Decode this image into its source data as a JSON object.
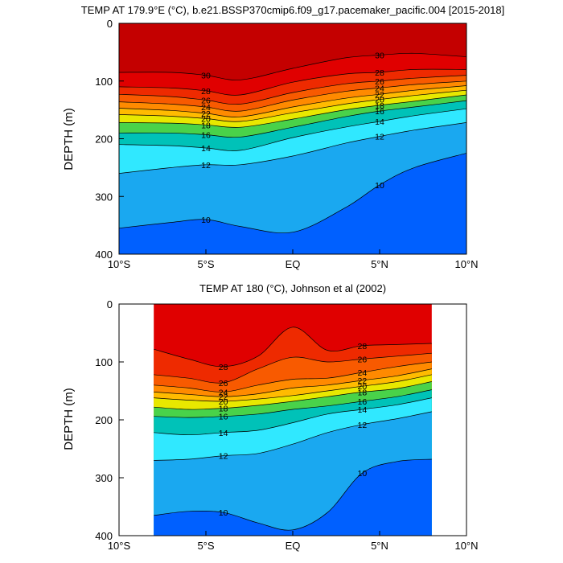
{
  "chart_data": [
    {
      "type": "contour",
      "title": "TEMP AT 179.9°E (°C), b.e21.BSSP370cmip6.f09_g17.pacemaker_pacific.004 [2015-2018]",
      "ylabel": "DEPTH (m)",
      "xlabel": "",
      "xlim": [
        -10,
        10
      ],
      "ylim": [
        400,
        0
      ],
      "x_ticks": [
        "10°S",
        "5°S",
        "EQ",
        "5°N",
        "10°N"
      ],
      "y_ticks": [
        "0",
        "100",
        "200",
        "300",
        "400"
      ],
      "data_extent_x": [
        -10,
        10
      ],
      "contour_levels": [
        10,
        12,
        14,
        16,
        18,
        20,
        22,
        24,
        26,
        28,
        30
      ],
      "labeled_isotherms": [
        30,
        28,
        26,
        24,
        22,
        20,
        18,
        16,
        14,
        12,
        10
      ],
      "approx_isotherm_depths_m": {
        "x": [
          -10,
          -7,
          -5,
          -3,
          0,
          3,
          5,
          7,
          10
        ],
        "30": [
          85,
          85,
          90,
          98,
          78,
          60,
          55,
          52,
          58
        ],
        "28": [
          110,
          112,
          117,
          124,
          102,
          88,
          85,
          80,
          80
        ],
        "26": [
          123,
          127,
          133,
          140,
          120,
          105,
          100,
          95,
          90
        ],
        "24": [
          136,
          140,
          145,
          152,
          133,
          118,
          112,
          106,
          100
        ],
        "22": [
          147,
          151,
          156,
          162,
          145,
          130,
          123,
          116,
          108
        ],
        "20": [
          158,
          161,
          165,
          170,
          155,
          140,
          132,
          125,
          116
        ],
        "18": [
          172,
          173,
          176,
          180,
          166,
          150,
          142,
          135,
          124
        ],
        "16": [
          190,
          190,
          193,
          197,
          180,
          162,
          152,
          145,
          134
        ],
        "14": [
          210,
          212,
          216,
          220,
          198,
          180,
          170,
          160,
          148
        ],
        "12": [
          260,
          250,
          245,
          245,
          230,
          208,
          196,
          185,
          172
        ],
        "10": [
          355,
          345,
          340,
          352,
          362,
          320,
          280,
          250,
          225
        ]
      },
      "warm_pool_above_30C": "surface to ~60 m near 7-5°S and 4-8°N"
    },
    {
      "type": "contour",
      "title": "TEMP AT 180 (°C), Johnson et al (2002)",
      "ylabel": "DEPTH (m)",
      "xlabel": "",
      "xlim": [
        -10,
        10
      ],
      "ylim": [
        400,
        0
      ],
      "x_ticks": [
        "10°S",
        "5°S",
        "EQ",
        "5°N",
        "10°N"
      ],
      "y_ticks": [
        "0",
        "100",
        "200",
        "300",
        "400"
      ],
      "data_extent_x": [
        -8,
        8
      ],
      "contour_levels": [
        10,
        12,
        14,
        16,
        18,
        20,
        22,
        24,
        26,
        28
      ],
      "labeled_isotherms": [
        28,
        26,
        24,
        22,
        20,
        18,
        16,
        14,
        12,
        10
      ],
      "approx_isotherm_depths_m": {
        "x": [
          -8,
          -6,
          -4,
          -2,
          0,
          2,
          4,
          6,
          8
        ],
        "28": [
          78,
          95,
          108,
          90,
          40,
          80,
          72,
          70,
          68
        ],
        "26": [
          122,
          128,
          136,
          112,
          92,
          100,
          95,
          90,
          85
        ],
        "24": [
          140,
          145,
          152,
          140,
          130,
          128,
          118,
          108,
          100
        ],
        "22": [
          152,
          156,
          160,
          155,
          145,
          140,
          132,
          124,
          112
        ],
        "20": [
          162,
          166,
          168,
          164,
          158,
          150,
          142,
          134,
          122
        ],
        "18": [
          178,
          182,
          180,
          175,
          168,
          160,
          152,
          146,
          134
        ],
        "16": [
          194,
          196,
          194,
          190,
          182,
          176,
          168,
          160,
          148
        ],
        "14": [
          222,
          226,
          222,
          218,
          205,
          190,
          182,
          174,
          162
        ],
        "12": [
          270,
          268,
          262,
          258,
          242,
          222,
          208,
          198,
          186
        ],
        "10": [
          365,
          358,
          360,
          378,
          390,
          360,
          292,
          272,
          268
        ]
      }
    }
  ]
}
